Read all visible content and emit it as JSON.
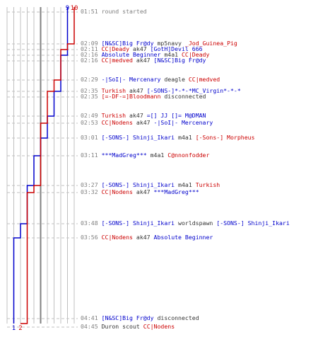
{
  "colors": {
    "team_blue": "#0000cc",
    "team_red": "#cc0000",
    "time": "#808080",
    "neutral": "#333333",
    "grid_light": "#c0c0c0",
    "grid_dark": "#808080"
  },
  "chart_data": {
    "type": "line",
    "title": "",
    "y_axis": "time",
    "x_axis": "players alive",
    "top_labels": [
      {
        "value": "9",
        "team": "blue"
      },
      {
        "value": "10",
        "team": "red"
      }
    ],
    "bottom_labels": [
      {
        "value": "1",
        "team": "blue"
      },
      {
        "value": "2",
        "team": "red"
      }
    ],
    "series": [
      {
        "team": "blue",
        "steps": [
          {
            "time": "01:51",
            "alive": 9
          },
          {
            "time": "02:09",
            "alive": 9
          },
          {
            "time": "02:16",
            "alive": 8
          },
          {
            "time": "02:35",
            "alive": 7
          },
          {
            "time": "02:49",
            "alive": 6
          },
          {
            "time": "03:01",
            "alive": 5
          },
          {
            "time": "03:11",
            "alive": 4
          },
          {
            "time": "03:27",
            "alive": 3
          },
          {
            "time": "03:48",
            "alive": 2
          },
          {
            "time": "03:56",
            "alive": 1
          },
          {
            "time": "04:45",
            "alive": 1
          }
        ]
      },
      {
        "team": "red",
        "steps": [
          {
            "time": "01:51",
            "alive": 10
          },
          {
            "time": "02:09",
            "alive": 9
          },
          {
            "time": "02:11",
            "alive": 8
          },
          {
            "time": "02:29",
            "alive": 7
          },
          {
            "time": "02:35",
            "alive": 6
          },
          {
            "time": "02:53",
            "alive": 5
          },
          {
            "time": "03:27",
            "alive": 4
          },
          {
            "time": "03:32",
            "alive": 3
          },
          {
            "time": "04:45",
            "alive": 2
          }
        ]
      }
    ]
  },
  "events": [
    {
      "time": "01:51",
      "parts": [
        {
          "t": "round started",
          "c": "time"
        }
      ]
    },
    {
      "time": "02:09",
      "parts": [
        {
          "t": "[N&SC]Big Fr@dy",
          "c": "blue"
        },
        {
          "t": " mp5navy ",
          "c": "neutral"
        },
        {
          "t": "_Jod_Guinea_Pig",
          "c": "red"
        }
      ]
    },
    {
      "time": "02:11",
      "parts": [
        {
          "t": "CC|Deady",
          "c": "red"
        },
        {
          "t": " ak47 ",
          "c": "neutral"
        },
        {
          "t": "[GotH]Devil 666",
          "c": "blue"
        }
      ]
    },
    {
      "time": "02:16",
      "parts": [
        {
          "t": "Absolute Beginner",
          "c": "blue"
        },
        {
          "t": " m4a1 ",
          "c": "neutral"
        },
        {
          "t": "CC|Deady",
          "c": "red"
        }
      ]
    },
    {
      "time": "02:16",
      "parts": [
        {
          "t": "CC|medved",
          "c": "red"
        },
        {
          "t": " ak47 ",
          "c": "neutral"
        },
        {
          "t": "[N&SC]Big Fr@dy",
          "c": "blue"
        }
      ]
    },
    {
      "time": "02:29",
      "parts": [
        {
          "t": "-|SoI|- Mercenary",
          "c": "blue"
        },
        {
          "t": " deagle ",
          "c": "neutral"
        },
        {
          "t": "CC|medved",
          "c": "red"
        }
      ]
    },
    {
      "time": "02:35",
      "parts": [
        {
          "t": "Turkish",
          "c": "red"
        },
        {
          "t": " ak47 ",
          "c": "neutral"
        },
        {
          "t": "[-SONS-]*-*-*MC_Virgin*-*-*",
          "c": "blue"
        }
      ]
    },
    {
      "time": "02:35",
      "parts": [
        {
          "t": "[=-DF-=]Bloodmann",
          "c": "red"
        },
        {
          "t": " disconnected",
          "c": "neutral"
        }
      ]
    },
    {
      "time": "02:49",
      "parts": [
        {
          "t": "Turkish",
          "c": "red"
        },
        {
          "t": " ak47 ",
          "c": "neutral"
        },
        {
          "t": "=[] JJ []= M@DMAN",
          "c": "blue"
        }
      ]
    },
    {
      "time": "02:53",
      "parts": [
        {
          "t": "CC|Nodens",
          "c": "red"
        },
        {
          "t": " ak47 ",
          "c": "neutral"
        },
        {
          "t": "-|SoI|- Mercenary",
          "c": "blue"
        }
      ]
    },
    {
      "time": "03:01",
      "parts": [
        {
          "t": "[-SONS-] Shinji_Ikari",
          "c": "blue"
        },
        {
          "t": " m4a1 ",
          "c": "neutral"
        },
        {
          "t": "[-Sons-] Morpheus",
          "c": "red"
        }
      ]
    },
    {
      "time": "03:11",
      "parts": [
        {
          "t": "***MadGreg***",
          "c": "blue"
        },
        {
          "t": " m4a1 ",
          "c": "neutral"
        },
        {
          "t": "C@nnonfodder",
          "c": "red"
        }
      ]
    },
    {
      "time": "03:27",
      "parts": [
        {
          "t": "[-SONS-] Shinji_Ikari",
          "c": "blue"
        },
        {
          "t": " m4a1 ",
          "c": "neutral"
        },
        {
          "t": "Turkish",
          "c": "red"
        }
      ]
    },
    {
      "time": "03:32",
      "parts": [
        {
          "t": "CC|Nodens",
          "c": "red"
        },
        {
          "t": " ak47 ",
          "c": "neutral"
        },
        {
          "t": "***MadGreg***",
          "c": "blue"
        }
      ]
    },
    {
      "time": "03:48",
      "parts": [
        {
          "t": "[-SONS-] Shinji_Ikari",
          "c": "blue"
        },
        {
          "t": " worldspawn ",
          "c": "neutral"
        },
        {
          "t": "[-SONS-] Shinji_Ikari",
          "c": "blue"
        }
      ]
    },
    {
      "time": "03:56",
      "parts": [
        {
          "t": "CC|Nodens",
          "c": "red"
        },
        {
          "t": " ak47 ",
          "c": "neutral"
        },
        {
          "t": "Absolute Beginner",
          "c": "blue"
        }
      ]
    },
    {
      "time": "04:41",
      "parts": [
        {
          "t": "[N&SC]Big Fr@dy",
          "c": "blue"
        },
        {
          "t": " disconnected",
          "c": "neutral"
        }
      ]
    },
    {
      "time": "04:45",
      "parts": [
        {
          "t": "Duron",
          "c": "neutral"
        },
        {
          "t": " scout ",
          "c": "neutral"
        },
        {
          "t": "CC|Nodens",
          "c": "red"
        }
      ]
    }
  ]
}
